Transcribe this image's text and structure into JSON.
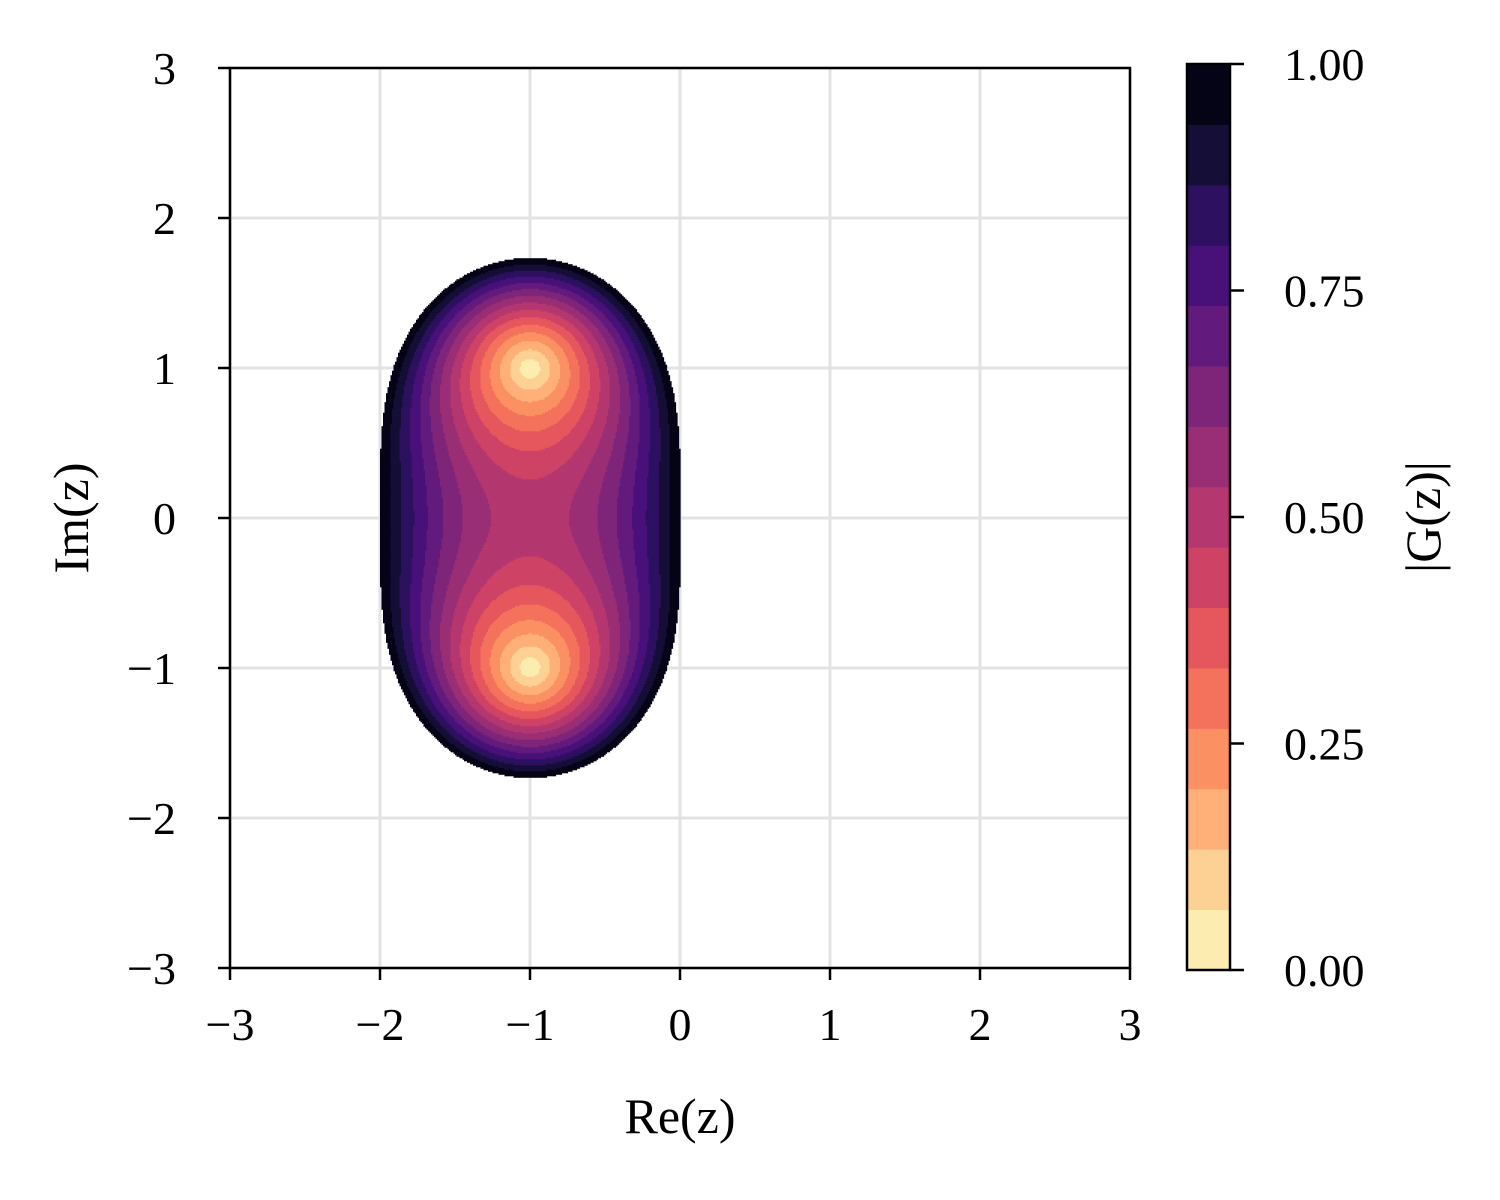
{
  "chart_data": {
    "type": "heatmap",
    "title": "",
    "xlabel": "Re(z)",
    "ylabel": "Im(z)",
    "xlim": [
      -3,
      3
    ],
    "ylim": [
      -3,
      3
    ],
    "xticks": [
      -3,
      -2,
      -1,
      0,
      1,
      2,
      3
    ],
    "yticks": [
      -3,
      -2,
      -1,
      0,
      1,
      2,
      3
    ],
    "xtick_labels": [
      "−3",
      "−2",
      "−1",
      "0",
      "1",
      "2",
      "3"
    ],
    "ytick_labels": [
      "−3",
      "−2",
      "−1",
      "0",
      "1",
      "2",
      "3"
    ],
    "grid": true,
    "colorbar": {
      "label": "|G(z)|",
      "range": [
        0,
        1
      ],
      "ticks": [
        0,
        0.25,
        0.5,
        0.75,
        1
      ],
      "tick_labels": [
        "0.00",
        "0.25",
        "0.50",
        "0.75",
        "1.00"
      ],
      "levels": 15,
      "colors": [
        "#fcecb0",
        "#fdd093",
        "#feb078",
        "#fb9163",
        "#f4715b",
        "#e5575d",
        "#ce4266",
        "#b4376f",
        "#9a2e75",
        "#7e2579",
        "#621b7c",
        "#481079",
        "#2d1160",
        "#150e37",
        "#050416"
      ],
      "colormap": "magma_r"
    },
    "field": {
      "quantity": "|G(z)|",
      "visible_region": "|G(z)| ≤ 1",
      "minima": [
        [
          -1,
          1
        ],
        [
          -1,
          -1
        ]
      ],
      "minimum_value": 0,
      "region_re_range": [
        -2,
        0
      ],
      "region_im_range": [
        -1.73,
        1.73
      ]
    }
  }
}
